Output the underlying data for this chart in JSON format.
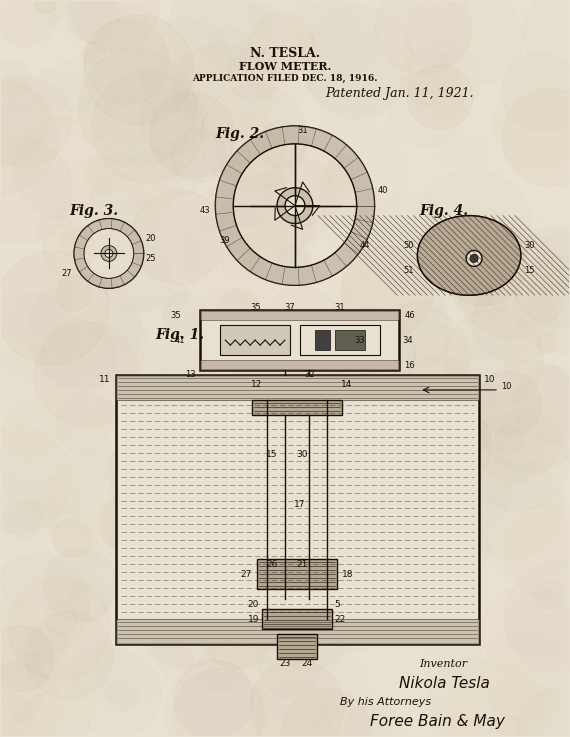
{
  "bg_color": "#e8e0d0",
  "line_color": "#1a1008",
  "title_line1": "N. TESLA.",
  "title_line2": "FLOW METER.",
  "title_line3": "APPLICATION FILED DEC. 18, 1916.",
  "patented": "Patented Jan. 11, 1921.",
  "inventor_label": "Inventor",
  "inventor_name": "Nikola Tesla",
  "attorney_label": "By his Attorneys",
  "attorney_name": "Foree Bain & May",
  "fig1_label": "Fig. 1.",
  "fig2_label": "Fig. 2.",
  "fig3_label": "Fig. 3.",
  "fig4_label": "Fig. 4."
}
